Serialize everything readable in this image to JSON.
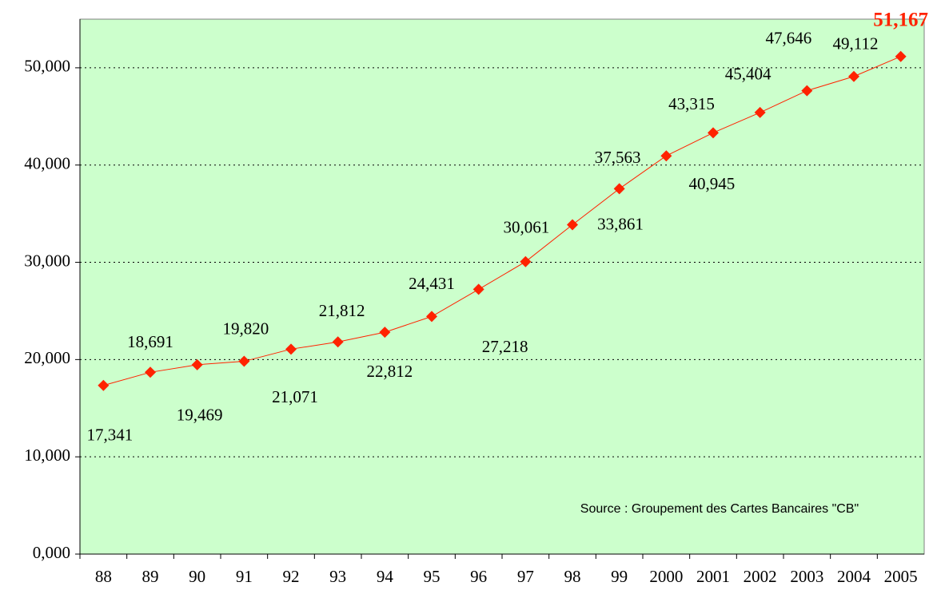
{
  "chart_data": {
    "type": "line",
    "categories": [
      "88",
      "89",
      "90",
      "91",
      "92",
      "93",
      "94",
      "95",
      "96",
      "97",
      "98",
      "99",
      "2000",
      "2001",
      "2002",
      "2003",
      "2004",
      "2005"
    ],
    "series": [
      {
        "name": "CB",
        "color": "#ff2200",
        "values": [
          17341,
          18691,
          19469,
          19820,
          21071,
          21812,
          22812,
          24431,
          27218,
          30061,
          33861,
          37563,
          40945,
          43315,
          45404,
          47646,
          49112,
          51167
        ],
        "value_labels": [
          "17,341",
          "18,691",
          "19,469",
          "19,820",
          "21,071",
          "21,812",
          "22,812",
          "24,431",
          "27,218",
          "30,061",
          "33,861",
          "37,563",
          "40,945",
          "43,315",
          "45,404",
          "47,646",
          "49,112",
          "51,167"
        ]
      }
    ],
    "ylim": [
      0,
      55000
    ],
    "yticks": [
      {
        "value": 0,
        "label": "0,000"
      },
      {
        "value": 10000,
        "label": "10,000"
      },
      {
        "value": 20000,
        "label": "20,000"
      },
      {
        "value": 30000,
        "label": "30,000"
      },
      {
        "value": 40000,
        "label": "40,000"
      },
      {
        "value": 50000,
        "label": "50,000"
      }
    ],
    "grid": true,
    "annotation": "Source : Groupement des Cartes Bancaires \"CB\"",
    "background": "#ccffcc"
  }
}
